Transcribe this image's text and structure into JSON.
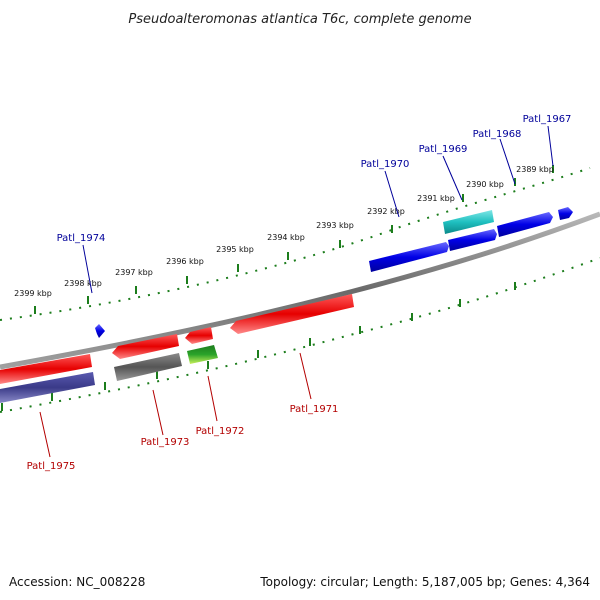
{
  "title": "Pseudoalteromonas atlantica T6c, complete genome",
  "footer": {
    "accession": "Accession: NC_008228",
    "summary": "Topology: circular; Length: 5,187,005 bp; Genes: 4,364"
  },
  "colors": {
    "backbone": "#7a7a7a",
    "ticks": "#1c7d1c",
    "forward_label": "#00009a",
    "reverse_label": "#b30000",
    "gene_blue": "#0000e6",
    "gene_cyan": "#1fc0c0",
    "gene_red": "#e60000",
    "gene_gray": "#555555",
    "gene_purple": "#3a3a88",
    "gene_green": "#2aa32a"
  },
  "scale_labels": [
    "2389 kbp",
    "2390 kbp",
    "2391 kbp",
    "2392 kbp",
    "2393 kbp",
    "2394 kbp",
    "2395 kbp",
    "2396 kbp",
    "2397 kbp",
    "2398 kbp",
    "2399 kbp"
  ],
  "forward_genes": [
    {
      "name": "Patl_1967"
    },
    {
      "name": "Patl_1968"
    },
    {
      "name": "Patl_1969"
    },
    {
      "name": "Patl_1970"
    },
    {
      "name": "Patl_1974"
    }
  ],
  "reverse_genes": [
    {
      "name": "Patl_1971"
    },
    {
      "name": "Patl_1972"
    },
    {
      "name": "Patl_1973"
    },
    {
      "name": "Patl_1975"
    }
  ]
}
